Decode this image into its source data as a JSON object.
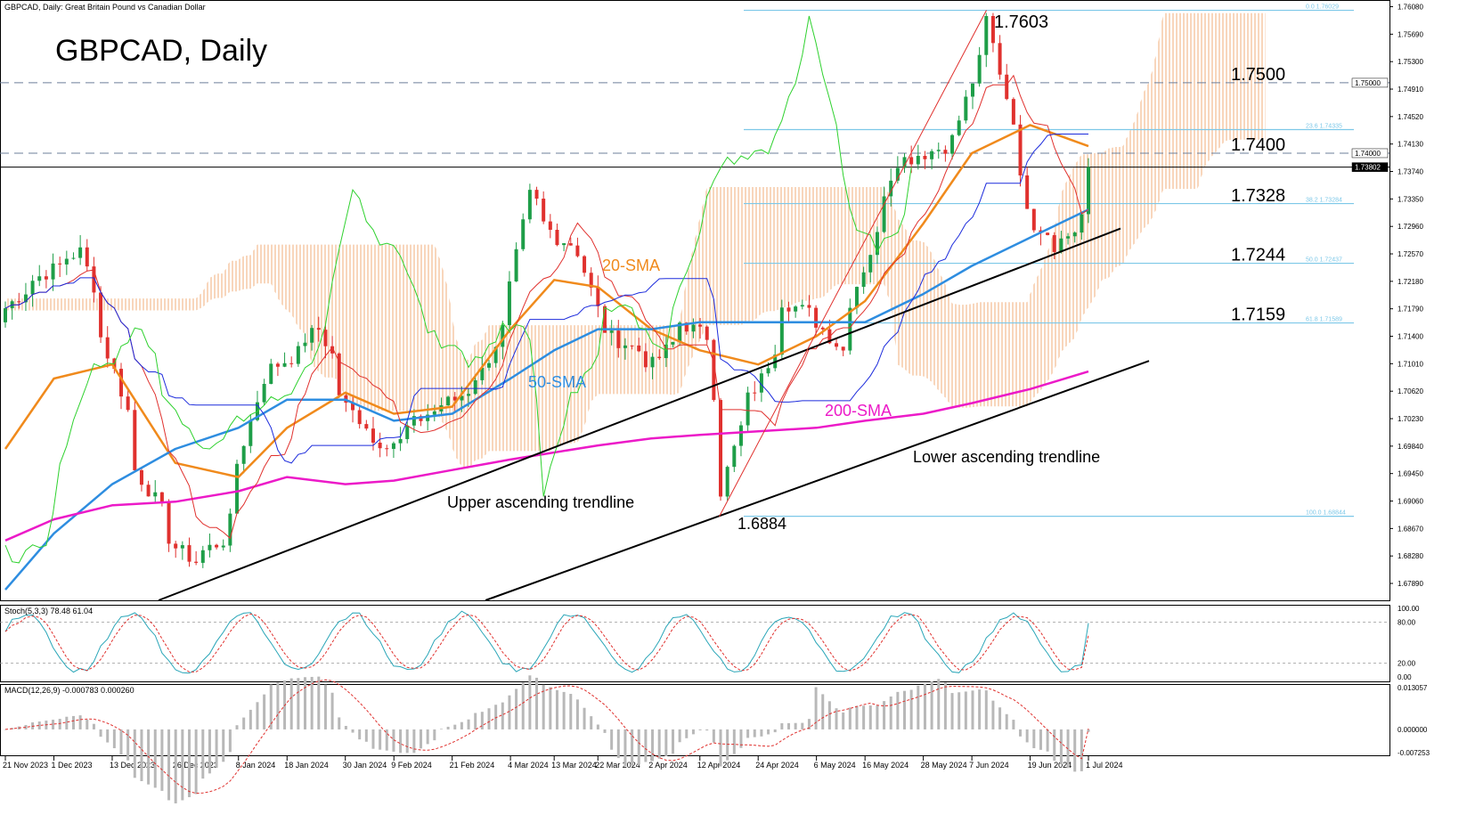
{
  "header": {
    "symbol_line": "GBPCAD, Daily:  Great Britain Pound vs Canadian Dollar",
    "big_title": "GBPCAD, Daily"
  },
  "colors": {
    "bull_candle": "#1e9e48",
    "bear_candle": "#e0312e",
    "sma20": "#f08a1c",
    "sma50": "#2e8de0",
    "sma200": "#ec1ac8",
    "tenkan": "#e0312e",
    "kijun": "#1c2bdc",
    "chikou": "#2ed12e",
    "fib": "#7dc8e8",
    "cloud": "#f0a060",
    "trendline": "#000000"
  },
  "price_axis": {
    "ticks": [
      "1.76080",
      "1.75690",
      "1.75300",
      "1.74910",
      "1.74520",
      "1.74130",
      "1.73740",
      "1.73350",
      "1.72960",
      "1.72570",
      "1.72180",
      "1.71790",
      "1.71400",
      "1.71010",
      "1.70620",
      "1.70230",
      "1.69840",
      "1.69450",
      "1.69060",
      "1.68670",
      "1.68280",
      "1.67890"
    ],
    "current_price_tag": "1.73802",
    "tag_1_75": "1.75000",
    "tag_1_74": "1.74000"
  },
  "date_axis": [
    "21 Nov 2023",
    "1 Dec 2023",
    "13 Dec 2023",
    "26 Dec 2023",
    "8 Jan 2024",
    "18 Jan 2024",
    "30 Jan 2024",
    "9 Feb 2024",
    "21 Feb 2024",
    "4 Mar 2024",
    "13 Mar 2024",
    "22 Mar 2024",
    "2 Apr 2024",
    "12 Apr 2024",
    "24 Apr 2024",
    "6 May 2024",
    "16 May 2024",
    "28 May 2024",
    "7 Jun 2024",
    "19 Jun 2024",
    "1 Jul 2024"
  ],
  "levels": [
    {
      "label": "1.7500",
      "price": 1.75
    },
    {
      "label": "1.7400",
      "price": 1.74
    },
    {
      "label": "1.7328",
      "price": 1.7328
    },
    {
      "label": "1.7244",
      "price": 1.7244
    },
    {
      "label": "1.7159",
      "price": 1.7159
    }
  ],
  "fib_labels": [
    {
      "text": "0.0  1.76029",
      "price": 1.76029
    },
    {
      "text": "23.6  1.74335",
      "price": 1.74335
    },
    {
      "text": "38.2  1.73284",
      "price": 1.73284
    },
    {
      "text": "50.0  1.72437",
      "price": 1.72437
    },
    {
      "text": "61.8  1.71589",
      "price": 1.71589
    },
    {
      "text": "100.0  1.68844",
      "price": 1.68844
    }
  ],
  "annotations": {
    "high": "1.7603",
    "low": "1.6884",
    "sma20_label": "20-SMA",
    "sma50_label": "50-SMA",
    "sma200_label": "200-SMA",
    "upper_trend": "Upper ascending trendline",
    "lower_trend": "Lower ascending trendline"
  },
  "stoch": {
    "header": "Stoch(5,3,3) 78.48 61.04",
    "ticks": [
      "100.00",
      "80.00",
      "20.00",
      "0.00"
    ]
  },
  "macd": {
    "header": "MACD(12,26,9) -0.000783 0.000260",
    "ticks": [
      "0.013057",
      "0.000000",
      "-0.007253"
    ]
  },
  "chart_data": {
    "type": "candlestick",
    "title": "GBPCAD, Daily",
    "symbol": "GBPCAD",
    "timeframe": "Daily",
    "ylim": [
      1.6765,
      1.7615
    ],
    "current_price": 1.73802,
    "period": [
      "21 Nov 2023",
      "1 Jul 2024"
    ],
    "key_points": [
      {
        "label": "1.7603",
        "date": "10 Jun 2024",
        "value": 1.7603,
        "kind": "high"
      },
      {
        "label": "1.6884",
        "date": "16 Apr 2024",
        "value": 1.6884,
        "kind": "low"
      }
    ],
    "close_path": [
      [
        "21 Nov 2023",
        1.718
      ],
      [
        "24 Nov 2023",
        1.7205
      ],
      [
        "1 Dec 2023",
        1.724
      ],
      [
        "6 Dec 2023",
        1.726
      ],
      [
        "13 Dec 2023",
        1.709
      ],
      [
        "18 Dec 2023",
        1.695
      ],
      [
        "26 Dec 2023",
        1.684
      ],
      [
        "29 Dec 2023",
        1.682
      ],
      [
        "4 Jan 2024",
        1.685
      ],
      [
        "8 Jan 2024",
        1.696
      ],
      [
        "12 Jan 2024",
        1.708
      ],
      [
        "18 Jan 2024",
        1.711
      ],
      [
        "24 Jan 2024",
        1.715
      ],
      [
        "30 Jan 2024",
        1.704
      ],
      [
        "5 Feb 2024",
        1.699
      ],
      [
        "9 Feb 2024",
        1.699
      ],
      [
        "15 Feb 2024",
        1.703
      ],
      [
        "21 Feb 2024",
        1.705
      ],
      [
        "27 Feb 2024",
        1.709
      ],
      [
        "4 Mar 2024",
        1.721
      ],
      [
        "7 Mar 2024",
        1.734
      ],
      [
        "13 Mar 2024",
        1.728
      ],
      [
        "18 Mar 2024",
        1.726
      ],
      [
        "22 Mar 2024",
        1.715
      ],
      [
        "27 Mar 2024",
        1.713
      ],
      [
        "2 Apr 2024",
        1.71
      ],
      [
        "8 Apr 2024",
        1.716
      ],
      [
        "12 Apr 2024",
        1.714
      ],
      [
        "15 Apr 2024",
        1.706
      ],
      [
        "16 Apr 2024",
        1.692
      ],
      [
        "19 Apr 2024",
        1.701
      ],
      [
        "24 Apr 2024",
        1.708
      ],
      [
        "29 Apr 2024",
        1.719
      ],
      [
        "6 May 2024",
        1.716
      ],
      [
        "10 May 2024",
        1.712
      ],
      [
        "16 May 2024",
        1.726
      ],
      [
        "22 May 2024",
        1.739
      ],
      [
        "28 May 2024",
        1.74
      ],
      [
        "3 Jun 2024",
        1.742
      ],
      [
        "7 Jun 2024",
        1.753
      ],
      [
        "10 Jun 2024",
        1.759
      ],
      [
        "13 Jun 2024",
        1.748
      ],
      [
        "19 Jun 2024",
        1.73
      ],
      [
        "24 Jun 2024",
        1.727
      ],
      [
        "27 Jun 2024",
        1.729
      ],
      [
        "1 Jul 2024",
        1.738
      ]
    ],
    "series": [
      {
        "name": "20-SMA",
        "points": [
          [
            "21 Nov 2023",
            1.698
          ],
          [
            "1 Dec 2023",
            1.708
          ],
          [
            "13 Dec 2023",
            1.71
          ],
          [
            "26 Dec 2023",
            1.696
          ],
          [
            "8 Jan 2024",
            1.694
          ],
          [
            "18 Jan 2024",
            1.701
          ],
          [
            "30 Jan 2024",
            1.706
          ],
          [
            "9 Feb 2024",
            1.703
          ],
          [
            "21 Feb 2024",
            1.704
          ],
          [
            "4 Mar 2024",
            1.715
          ],
          [
            "13 Mar 2024",
            1.722
          ],
          [
            "22 Mar 2024",
            1.721
          ],
          [
            "2 Apr 2024",
            1.715
          ],
          [
            "12 Apr 2024",
            1.712
          ],
          [
            "24 Apr 2024",
            1.71
          ],
          [
            "6 May 2024",
            1.714
          ],
          [
            "16 May 2024",
            1.719
          ],
          [
            "28 May 2024",
            1.73
          ],
          [
            "7 Jun 2024",
            1.74
          ],
          [
            "19 Jun 2024",
            1.744
          ],
          [
            "1 Jul 2024",
            1.741
          ]
        ]
      },
      {
        "name": "50-SMA",
        "points": [
          [
            "21 Nov 2023",
            1.678
          ],
          [
            "1 Dec 2023",
            1.686
          ],
          [
            "13 Dec 2023",
            1.693
          ],
          [
            "26 Dec 2023",
            1.698
          ],
          [
            "8 Jan 2024",
            1.701
          ],
          [
            "18 Jan 2024",
            1.705
          ],
          [
            "30 Jan 2024",
            1.705
          ],
          [
            "9 Feb 2024",
            1.702
          ],
          [
            "21 Feb 2024",
            1.703
          ],
          [
            "4 Mar 2024",
            1.708
          ],
          [
            "13 Mar 2024",
            1.712
          ],
          [
            "22 Mar 2024",
            1.715
          ],
          [
            "2 Apr 2024",
            1.715
          ],
          [
            "12 Apr 2024",
            1.716
          ],
          [
            "24 Apr 2024",
            1.716
          ],
          [
            "6 May 2024",
            1.716
          ],
          [
            "16 May 2024",
            1.716
          ],
          [
            "28 May 2024",
            1.72
          ],
          [
            "7 Jun 2024",
            1.724
          ],
          [
            "19 Jun 2024",
            1.728
          ],
          [
            "1 Jul 2024",
            1.732
          ]
        ]
      },
      {
        "name": "200-SMA",
        "points": [
          [
            "21 Nov 2023",
            1.685
          ],
          [
            "1 Dec 2023",
            1.688
          ],
          [
            "13 Dec 2023",
            1.69
          ],
          [
            "26 Dec 2023",
            1.6905
          ],
          [
            "8 Jan 2024",
            1.692
          ],
          [
            "18 Jan 2024",
            1.694
          ],
          [
            "30 Jan 2024",
            1.693
          ],
          [
            "9 Feb 2024",
            1.6935
          ],
          [
            "21 Feb 2024",
            1.695
          ],
          [
            "4 Mar 2024",
            1.6965
          ],
          [
            "13 Mar 2024",
            1.6975
          ],
          [
            "22 Mar 2024",
            1.6985
          ],
          [
            "2 Apr 2024",
            1.6995
          ],
          [
            "12 Apr 2024",
            1.7
          ],
          [
            "24 Apr 2024",
            1.7005
          ],
          [
            "6 May 2024",
            1.701
          ],
          [
            "16 May 2024",
            1.702
          ],
          [
            "28 May 2024",
            1.703
          ],
          [
            "7 Jun 2024",
            1.7045
          ],
          [
            "19 Jun 2024",
            1.7065
          ],
          [
            "1 Jul 2024",
            1.709
          ]
        ]
      }
    ],
    "levels": [
      1.75,
      1.74,
      1.7328,
      1.7244,
      1.7159
    ],
    "stoch_last": [
      78.48,
      61.04
    ],
    "macd_last": [
      -0.000783,
      0.00026
    ]
  }
}
